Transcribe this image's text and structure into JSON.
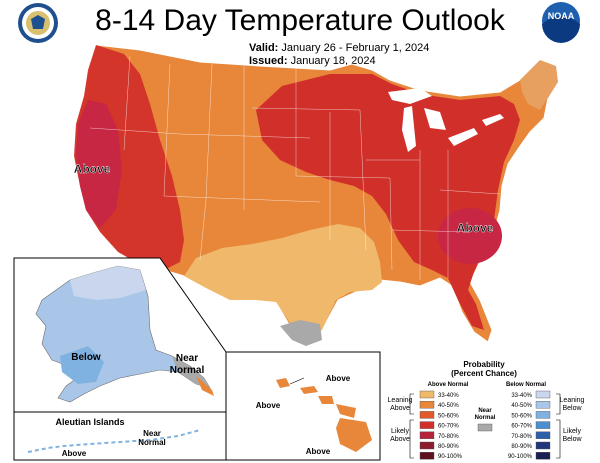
{
  "header": {
    "title": "8-14 Day Temperature Outlook",
    "valid_label": "Valid:",
    "valid_range": "January 26 - February 1, 2024",
    "issued_label": "Issued:",
    "issued_date": "January 18, 2024"
  },
  "logos": {
    "left": {
      "icon": "doc-seal-logo"
    },
    "right": {
      "icon": "noaa-logo",
      "text": "NOAA"
    }
  },
  "map_labels": {
    "west_above": "Above",
    "southeast_above": "Above",
    "alaska_below": "Below",
    "alaska_near_normal_1": "Near",
    "alaska_near_normal_2": "Normal",
    "aleutian_title": "Aleutian Islands",
    "aleutian_above": "Above",
    "aleutian_near_1": "Near",
    "aleutian_near_2": "Normal",
    "hawaii_above_1": "Above",
    "hawaii_above_2": "Above",
    "hawaii_above_3": "Above"
  },
  "legend": {
    "title_1": "Probability",
    "title_2": "(Percent Chance)",
    "above_header": "Above Normal",
    "below_header": "Below Normal",
    "near_1": "Near",
    "near_2": "Normal",
    "leaning_above_1": "Leaning",
    "leaning_above_2": "Above",
    "likely_above_1": "Likely",
    "likely_above_2": "Above",
    "leaning_below_1": "Leaning",
    "leaning_below_2": "Below",
    "likely_below_1": "Likely",
    "likely_below_2": "Below",
    "ranges": [
      "33-40%",
      "40-50%",
      "50-60%",
      "60-70%",
      "70-80%",
      "80-90%",
      "90-100%"
    ],
    "above_colors": [
      "#f0b86a",
      "#e8863a",
      "#e25a2a",
      "#d12f2a",
      "#b4253a",
      "#8a1c2c",
      "#5e1220"
    ],
    "below_colors": [
      "#c9d6ee",
      "#a9c6e8",
      "#7fb2e0",
      "#4b8fcf",
      "#2c5fa8",
      "#22347a",
      "#1a1f52"
    ],
    "near_color": "#a9a9a9"
  }
}
